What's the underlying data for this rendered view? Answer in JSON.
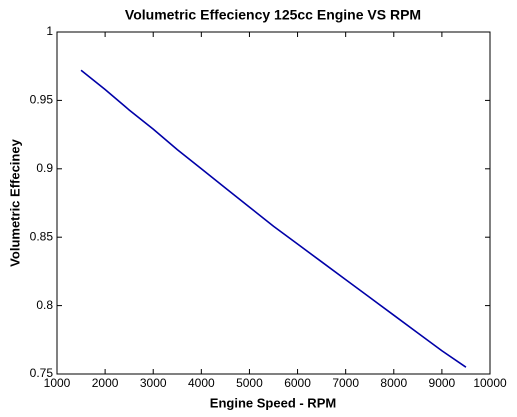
{
  "chart_data": {
    "type": "line",
    "title": "Volumetric Effeciency 125cc Engine VS RPM",
    "xlabel": "Engine Speed - RPM",
    "ylabel": "Volumetric Effeciney",
    "x": [
      1500,
      2000,
      2500,
      3000,
      3500,
      4000,
      4500,
      5000,
      5500,
      6000,
      6500,
      7000,
      7500,
      8000,
      8500,
      9000,
      9500
    ],
    "series": [
      {
        "name": "Volumetric Effeciency",
        "color": "#0000a8",
        "values": [
          0.972,
          0.958,
          0.943,
          0.929,
          0.914,
          0.9,
          0.886,
          0.872,
          0.858,
          0.845,
          0.832,
          0.819,
          0.806,
          0.793,
          0.78,
          0.767,
          0.755
        ]
      }
    ],
    "xlim": [
      1000,
      10000
    ],
    "xticks": [
      1000,
      2000,
      3000,
      4000,
      5000,
      6000,
      7000,
      8000,
      9000,
      10000
    ],
    "ylim": [
      0.75,
      1
    ],
    "yticks": [
      0.75,
      0.8,
      0.85,
      0.9,
      0.95,
      1
    ],
    "grid": false
  }
}
